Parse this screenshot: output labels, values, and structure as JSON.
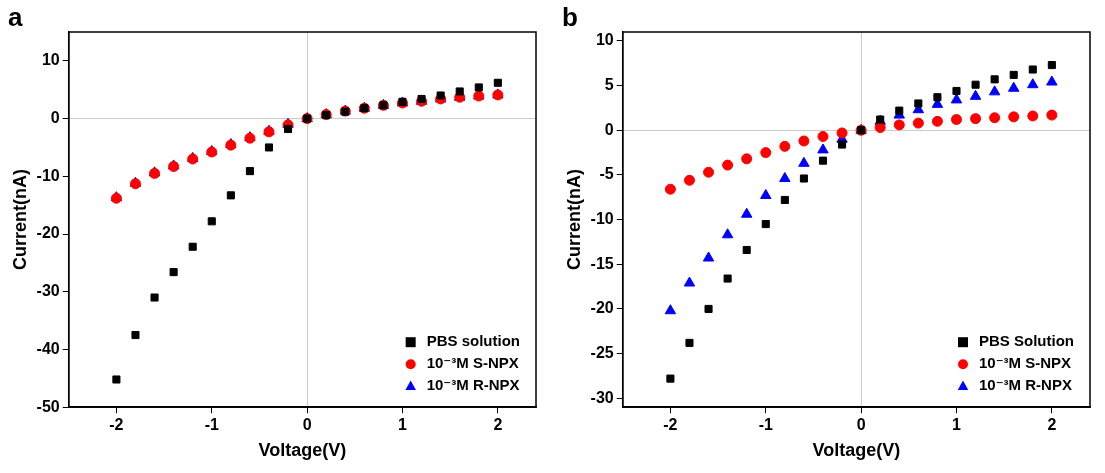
{
  "chart_data": [
    {
      "type": "scatter",
      "panel": "a",
      "x_label": "Voltage(V)",
      "y_label": "Current(nA)",
      "x": [
        -2,
        -1.8,
        -1.6,
        -1.4,
        -1.2,
        -1,
        -0.8,
        -0.6,
        -0.4,
        -0.2,
        0,
        0.2,
        0.4,
        0.6,
        0.8,
        1,
        1.2,
        1.4,
        1.6,
        1.8,
        2
      ],
      "series": [
        {
          "name": "PBS solution",
          "color": "#000000",
          "marker": "square",
          "values": [
            -45.2,
            -37.5,
            -31,
            -26.6,
            -22.2,
            -17.8,
            -13.3,
            -9.1,
            -5,
            -1.8,
            0,
            0.6,
            1.2,
            1.8,
            2.3,
            2.9,
            3.4,
            4,
            4.7,
            5.4,
            6.2
          ]
        },
        {
          "name": "10⁻³M S-NPX",
          "color": "#ff0000",
          "marker": "circle",
          "values": [
            -13.8,
            -11.3,
            -9.5,
            -8.3,
            -7,
            -5.8,
            -4.6,
            -3.4,
            -2.3,
            -1.1,
            0,
            0.7,
            1.3,
            1.8,
            2.3,
            2.7,
            3,
            3.4,
            3.7,
            3.9,
            4.1
          ]
        },
        {
          "name": "10⁻³M R-NPX",
          "color": "#0000ff",
          "marker": "triangle",
          "values": [
            -13.7,
            -11.2,
            -9.4,
            -8.2,
            -6.9,
            -5.7,
            -4.5,
            -3.3,
            -2.2,
            -1,
            0,
            0.7,
            1.3,
            1.8,
            2.3,
            2.7,
            3,
            3.4,
            3.7,
            3.9,
            4.1
          ]
        }
      ],
      "xlim": [
        -2.5,
        2.4
      ],
      "xticks": [
        -2,
        -1,
        0,
        1,
        2
      ],
      "ylim": [
        -50,
        15
      ],
      "yticks": [
        -50,
        -40,
        -30,
        -20,
        -10,
        0,
        10
      ],
      "grid": false,
      "legend": "lower right"
    },
    {
      "type": "scatter",
      "panel": "b",
      "x_label": "Voltage(V)",
      "y_label": "Current(nA)",
      "x": [
        -2,
        -1.8,
        -1.6,
        -1.4,
        -1.2,
        -1,
        -0.8,
        -0.6,
        -0.4,
        -0.2,
        0,
        0.2,
        0.4,
        0.6,
        0.8,
        1,
        1.2,
        1.4,
        1.6,
        1.8,
        2
      ],
      "series": [
        {
          "name": "PBS Solution",
          "color": "#000000",
          "marker": "square",
          "values": [
            -27.8,
            -23.8,
            -20,
            -16.6,
            -13.4,
            -10.5,
            -7.8,
            -5.4,
            -3.4,
            -1.6,
            0,
            1.2,
            2.2,
            3,
            3.7,
            4.4,
            5.1,
            5.7,
            6.2,
            6.8,
            7.3
          ]
        },
        {
          "name": "10⁻³M S-NPX",
          "color": "#ff0000",
          "marker": "circle",
          "values": [
            -6.6,
            -5.6,
            -4.7,
            -3.9,
            -3.2,
            -2.5,
            -1.8,
            -1.2,
            -0.7,
            -0.3,
            0,
            0.3,
            0.6,
            0.8,
            1,
            1.2,
            1.3,
            1.4,
            1.5,
            1.6,
            1.7
          ]
        },
        {
          "name": "10⁻³M R-NPX",
          "color": "#0000ff",
          "marker": "triangle",
          "values": [
            -20.2,
            -17.1,
            -14.3,
            -11.7,
            -9.4,
            -7.3,
            -5.4,
            -3.7,
            -2.2,
            -1,
            0,
            1,
            1.7,
            2.3,
            2.9,
            3.4,
            3.8,
            4.3,
            4.7,
            5.1,
            5.4
          ]
        }
      ],
      "xlim": [
        -2.5,
        2.4
      ],
      "xticks": [
        -2,
        -1,
        0,
        1,
        2
      ],
      "ylim": [
        -31,
        11
      ],
      "yticks": [
        -30,
        -25,
        -20,
        -15,
        -10,
        -5,
        0,
        5,
        10
      ],
      "grid": false,
      "legend": "lower right"
    }
  ]
}
